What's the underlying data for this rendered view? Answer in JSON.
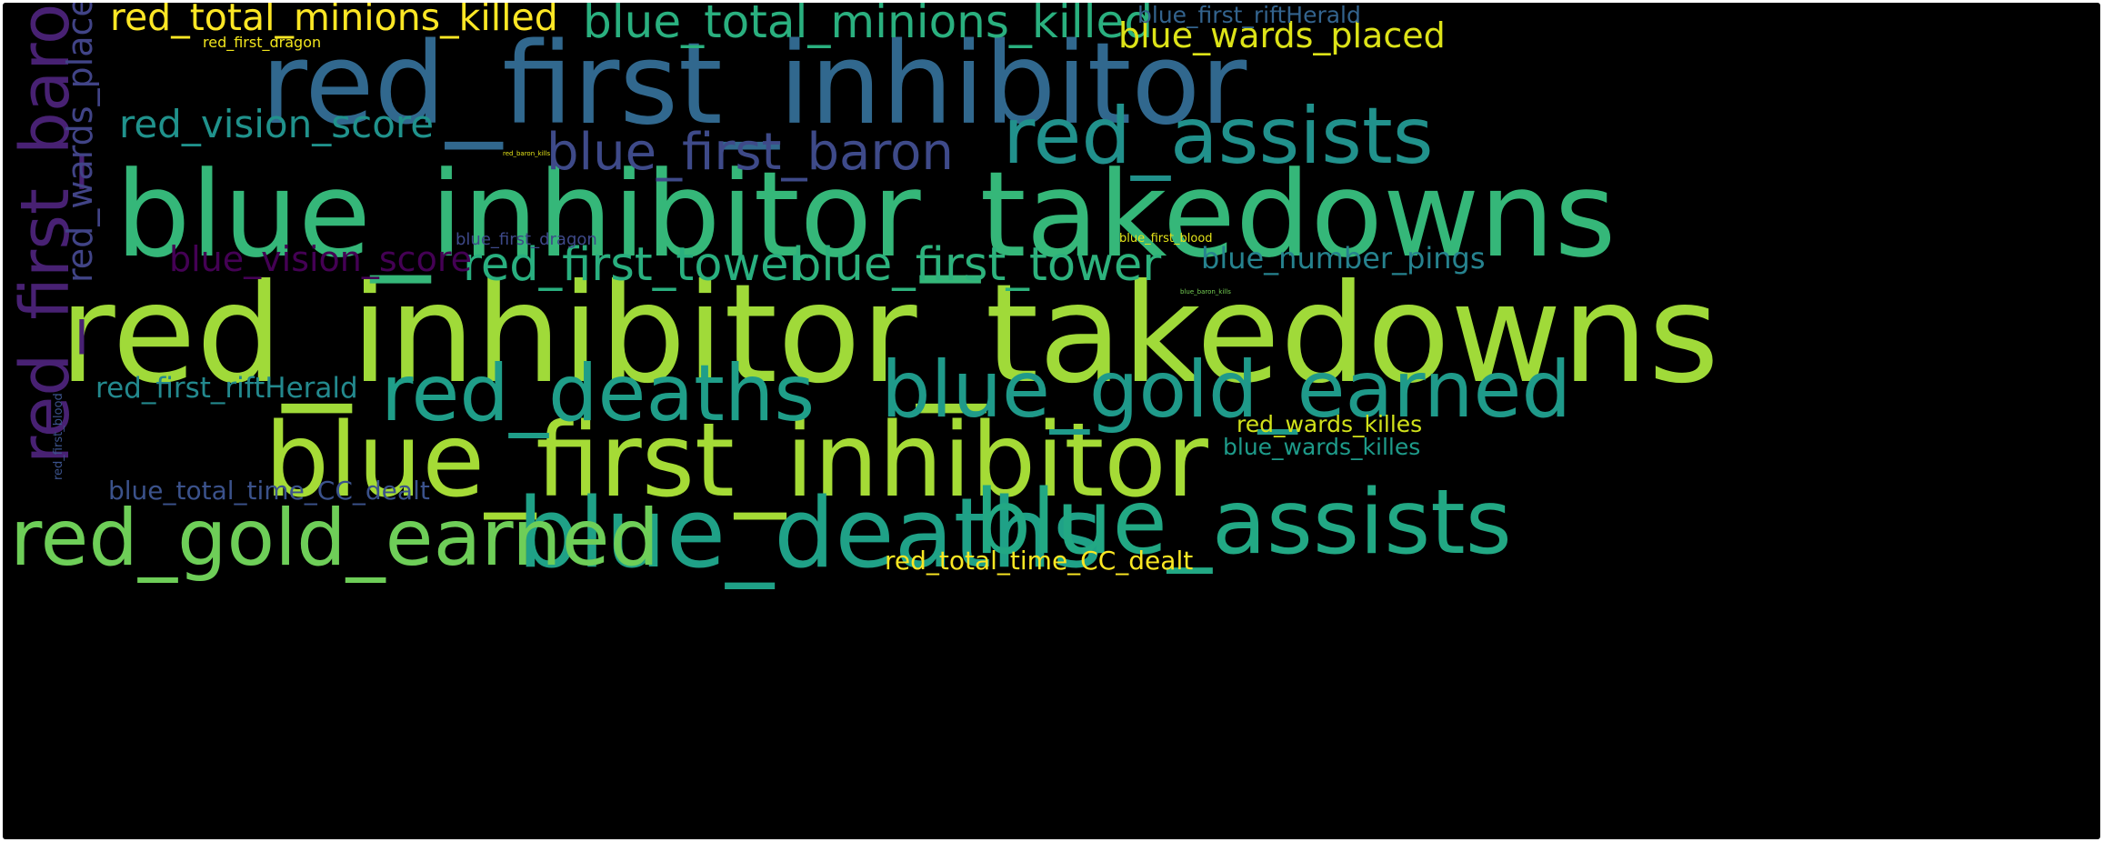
{
  "background_color": "#000000",
  "words": [
    {
      "id": "w01",
      "text": "red_inhibitor_takedowns",
      "color": "#a0da39",
      "orientation": "horizontal"
    },
    {
      "id": "w02",
      "text": "blue_inhibitor_takedowns",
      "color": "#35b779",
      "orientation": "horizontal"
    },
    {
      "id": "w03",
      "text": "red_first_inhibitor",
      "color": "#31688e",
      "orientation": "horizontal"
    },
    {
      "id": "w04",
      "text": "blue_first_inhibitor",
      "color": "#a5db36",
      "orientation": "horizontal"
    },
    {
      "id": "w05",
      "text": "blue_deaths",
      "color": "#1fa187",
      "orientation": "horizontal"
    },
    {
      "id": "w06",
      "text": "blue_assists",
      "color": "#22a884",
      "orientation": "horizontal"
    },
    {
      "id": "w07",
      "text": "red_gold_earned",
      "color": "#6ece58",
      "orientation": "horizontal"
    },
    {
      "id": "w08",
      "text": "blue_gold_earned",
      "color": "#1f9a8a",
      "orientation": "horizontal"
    },
    {
      "id": "w09",
      "text": "red_deaths",
      "color": "#1f9e89",
      "orientation": "horizontal"
    },
    {
      "id": "w10",
      "text": "red_assists",
      "color": "#21918c",
      "orientation": "horizontal"
    },
    {
      "id": "w11",
      "text": "red_first_baron",
      "color": "#482173",
      "orientation": "vertical"
    },
    {
      "id": "w12",
      "text": "blue_first_baron",
      "color": "#3e4a89",
      "orientation": "horizontal"
    },
    {
      "id": "w13",
      "text": "red_first_tower",
      "color": "#29af7f",
      "orientation": "horizontal"
    },
    {
      "id": "w14",
      "text": "blue_first_tower",
      "color": "#2db27d",
      "orientation": "horizontal"
    },
    {
      "id": "w15",
      "text": "blue_total_minions_killed",
      "color": "#2ab07f",
      "orientation": "horizontal"
    },
    {
      "id": "w16",
      "text": "red_total_minions_killed",
      "color": "#fde725",
      "orientation": "horizontal"
    },
    {
      "id": "w17",
      "text": "red_vision_score",
      "color": "#20928c",
      "orientation": "horizontal"
    },
    {
      "id": "w18",
      "text": "blue_vision_score",
      "color": "#440154",
      "orientation": "horizontal"
    },
    {
      "id": "w19",
      "text": "red_wards_placed",
      "color": "#414487",
      "orientation": "vertical"
    },
    {
      "id": "w20",
      "text": "blue_wards_placed",
      "color": "#dde318",
      "orientation": "horizontal"
    },
    {
      "id": "w21",
      "text": "blue_number_pings",
      "color": "#26828e",
      "orientation": "horizontal"
    },
    {
      "id": "w22",
      "text": "red_first_riftHerald",
      "color": "#23898e",
      "orientation": "horizontal"
    },
    {
      "id": "w23",
      "text": "blue_first_riftHerald",
      "color": "#33638d",
      "orientation": "horizontal"
    },
    {
      "id": "w24",
      "text": "blue_total_time_CC_dealt",
      "color": "#3b528b",
      "orientation": "horizontal"
    },
    {
      "id": "w25",
      "text": "red_total_time_CC_dealt",
      "color": "#fbe723",
      "orientation": "horizontal"
    },
    {
      "id": "w26",
      "text": "red_wards_killes",
      "color": "#d2e21b",
      "orientation": "horizontal"
    },
    {
      "id": "w27",
      "text": "blue_wards_killes",
      "color": "#1e9b8a",
      "orientation": "horizontal"
    },
    {
      "id": "w28",
      "text": "blue_first_dragon",
      "color": "#3e4989",
      "orientation": "horizontal"
    },
    {
      "id": "w29",
      "text": "red_first_dragon",
      "color": "#f1e51d",
      "orientation": "horizontal"
    },
    {
      "id": "w30",
      "text": "blue_first_blood",
      "color": "#e5e419",
      "orientation": "horizontal"
    },
    {
      "id": "w31",
      "text": "red_first_blood",
      "color": "#3b528b",
      "orientation": "vertical"
    },
    {
      "id": "w32",
      "text": "red_baron_kills",
      "color": "#e5e419",
      "orientation": "horizontal"
    },
    {
      "id": "w33",
      "text": "blue_baron_kills",
      "color": "#75d054",
      "orientation": "horizontal"
    }
  ]
}
